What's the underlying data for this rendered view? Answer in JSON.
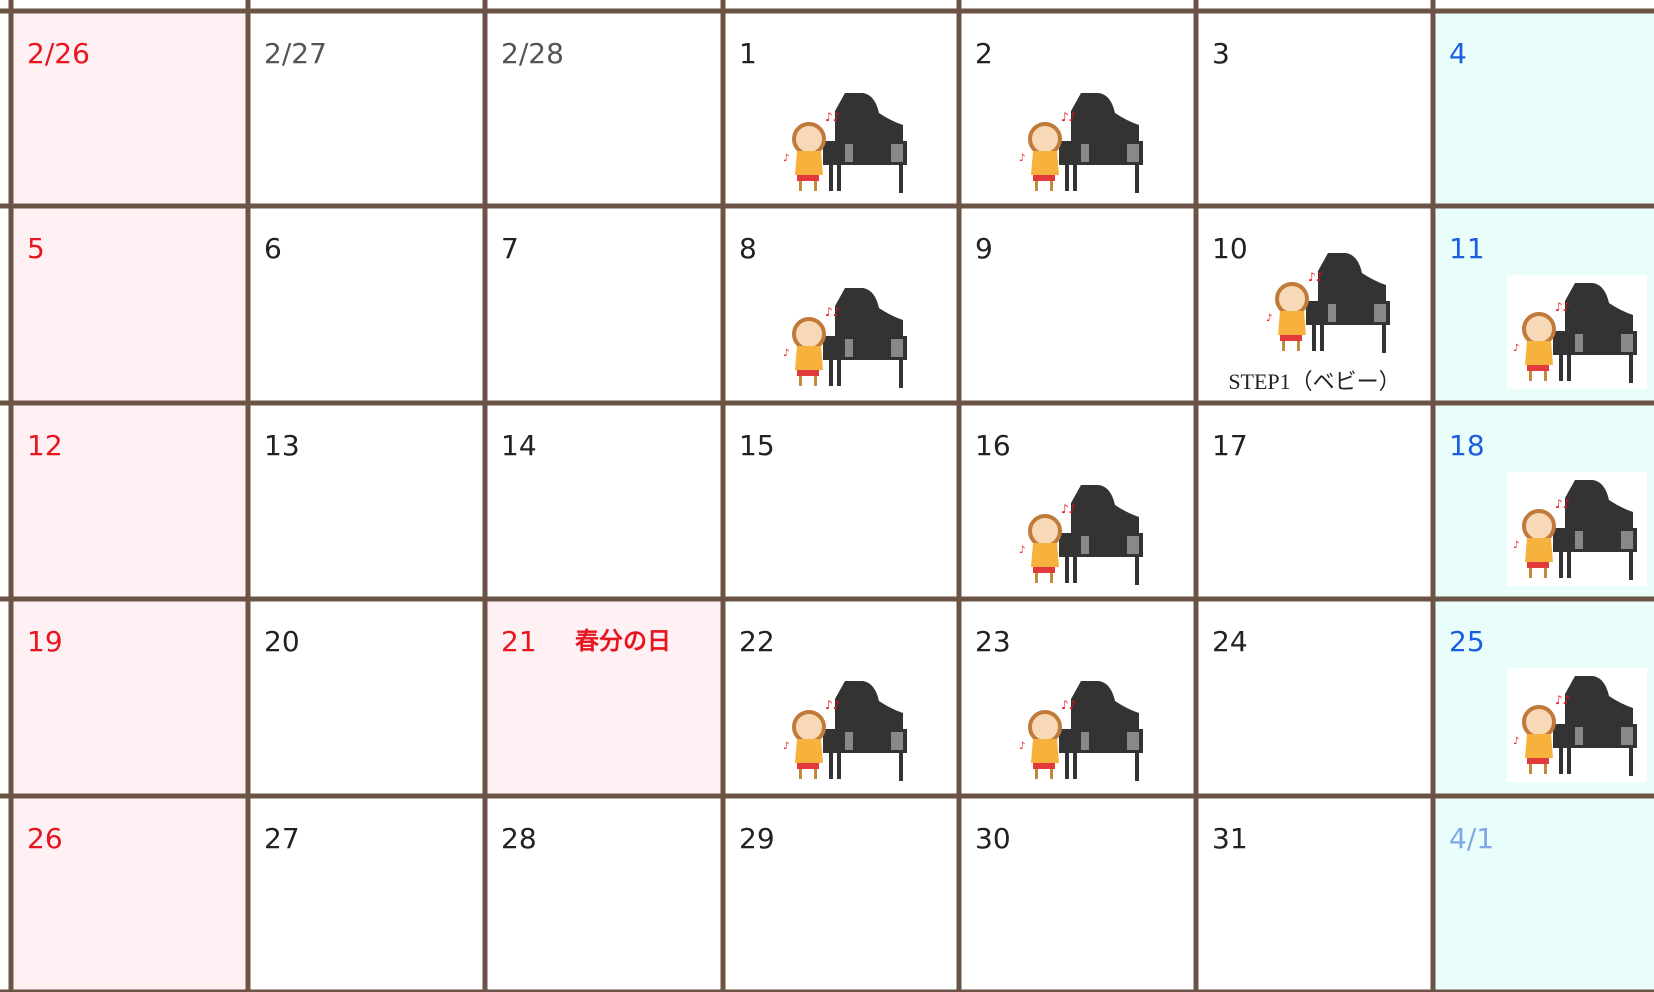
{
  "calendar": {
    "weeks": [
      [
        {
          "date": "2/26",
          "color": "#e8141e",
          "background": "#fff0f4"
        },
        {
          "date": "2/27",
          "color": "#555555",
          "background": "#ffffff"
        },
        {
          "date": "2/28",
          "color": "#555555",
          "background": "#ffffff"
        },
        {
          "date": "1",
          "color": "#222222",
          "background": "#ffffff",
          "piano": true
        },
        {
          "date": "2",
          "color": "#222222",
          "background": "#ffffff",
          "piano": true
        },
        {
          "date": "3",
          "color": "#222222",
          "background": "#ffffff"
        },
        {
          "date": "4",
          "color": "#1a5fe0",
          "background": "#e9fdfb"
        }
      ],
      [
        {
          "date": "5",
          "color": "#e8141e",
          "background": "#fff0f4"
        },
        {
          "date": "6",
          "color": "#222222",
          "background": "#ffffff"
        },
        {
          "date": "7",
          "color": "#222222",
          "background": "#ffffff"
        },
        {
          "date": "8",
          "color": "#222222",
          "background": "#ffffff",
          "piano": true
        },
        {
          "date": "9",
          "color": "#222222",
          "background": "#ffffff"
        },
        {
          "date": "10",
          "color": "#222222",
          "background": "#ffffff",
          "piano": true,
          "note": "STEP1（ベビー）"
        },
        {
          "date": "11",
          "color": "#1a5fe0",
          "background": "#e9fdfb",
          "piano": true
        }
      ],
      [
        {
          "date": "12",
          "color": "#e8141e",
          "background": "#fff0f4"
        },
        {
          "date": "13",
          "color": "#222222",
          "background": "#ffffff"
        },
        {
          "date": "14",
          "color": "#222222",
          "background": "#ffffff"
        },
        {
          "date": "15",
          "color": "#222222",
          "background": "#ffffff"
        },
        {
          "date": "16",
          "color": "#222222",
          "background": "#ffffff",
          "piano": true
        },
        {
          "date": "17",
          "color": "#222222",
          "background": "#ffffff"
        },
        {
          "date": "18",
          "color": "#1a5fe0",
          "background": "#e9fdfb",
          "piano": true
        }
      ],
      [
        {
          "date": "19",
          "color": "#e8141e",
          "background": "#fff0f4"
        },
        {
          "date": "20",
          "color": "#222222",
          "background": "#ffffff"
        },
        {
          "date": "21",
          "color": "#e8141e",
          "background": "#fff0f4",
          "holiday": "春分の日"
        },
        {
          "date": "22",
          "color": "#222222",
          "background": "#ffffff",
          "piano": true
        },
        {
          "date": "23",
          "color": "#222222",
          "background": "#ffffff",
          "piano": true
        },
        {
          "date": "24",
          "color": "#222222",
          "background": "#ffffff"
        },
        {
          "date": "25",
          "color": "#1a5fe0",
          "background": "#e9fdfb",
          "piano": true
        }
      ],
      [
        {
          "date": "26",
          "color": "#e8141e",
          "background": "#fff0f4"
        },
        {
          "date": "27",
          "color": "#222222",
          "background": "#ffffff"
        },
        {
          "date": "28",
          "color": "#222222",
          "background": "#ffffff"
        },
        {
          "date": "29",
          "color": "#222222",
          "background": "#ffffff"
        },
        {
          "date": "30",
          "color": "#222222",
          "background": "#ffffff"
        },
        {
          "date": "31",
          "color": "#222222",
          "background": "#ffffff"
        },
        {
          "date": "4/1",
          "color": "#7fa9e6",
          "background": "#e9fdfb"
        }
      ]
    ]
  }
}
